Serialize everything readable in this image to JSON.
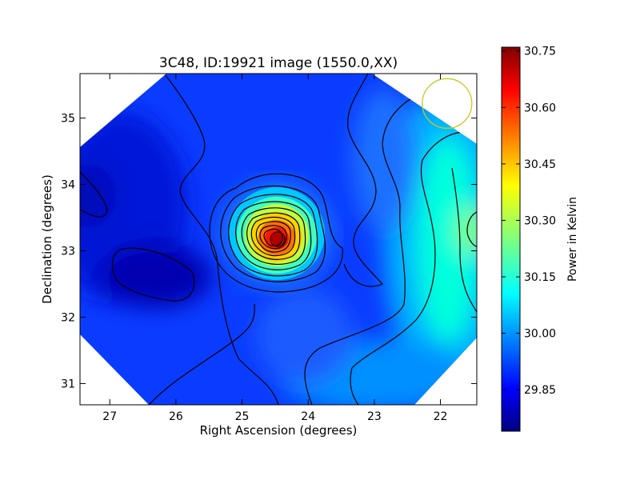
{
  "chart_data": {
    "type": "heatmap",
    "title": "3C48, ID:19921 image (1550.0,XX)",
    "xlabel": "Right Ascension (degrees)",
    "ylabel": "Declination (degrees)",
    "xlim": [
      27.45,
      21.45
    ],
    "ylim": [
      30.68,
      35.67
    ],
    "x_ticks": [
      27,
      26,
      25,
      24,
      23,
      22
    ],
    "y_ticks": [
      31,
      32,
      33,
      34,
      35
    ],
    "colorbar": {
      "label": "Power in Kelvin",
      "range": [
        29.74,
        30.76
      ],
      "ticks": [
        "29.85",
        "30.00",
        "30.15",
        "30.30",
        "30.45",
        "30.60",
        "30.75"
      ],
      "tick_values": [
        29.85,
        30.0,
        30.15,
        30.3,
        30.45,
        30.6,
        30.75
      ]
    },
    "peak": {
      "ra": 24.45,
      "dec": 33.17,
      "value": 30.75
    },
    "background_value": 29.93,
    "beam": {
      "ra": 21.9,
      "dec": 35.22,
      "color": "#c8c820"
    },
    "colors": {
      "jet": [
        "#00007f",
        "#0000ff",
        "#007fff",
        "#00ffff",
        "#7fff7f",
        "#ffff00",
        "#ff7f00",
        "#ff0000",
        "#7f0000"
      ]
    }
  }
}
